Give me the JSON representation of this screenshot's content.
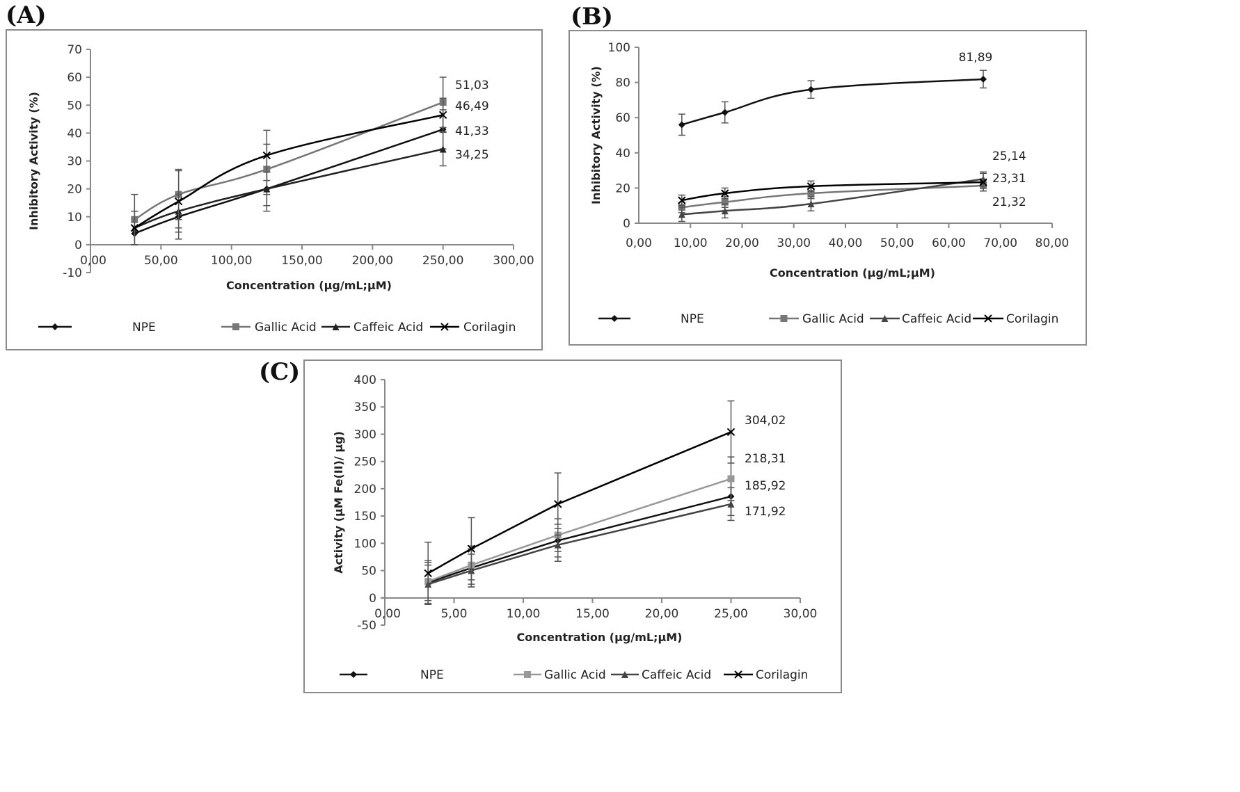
{
  "panels": [
    {
      "letter": "(A)"
    },
    {
      "letter": "(B)"
    },
    {
      "letter": "(C)"
    }
  ],
  "chart_data": [
    {
      "id": "A",
      "type": "line",
      "title": "",
      "xlabel": "Concentration (µg/mL;µM)",
      "ylabel": "Inhibitory Activity (%)",
      "xlim": [
        0,
        300
      ],
      "ylim": [
        -10,
        70
      ],
      "xticks": [
        0,
        50,
        100,
        150,
        200,
        250,
        300
      ],
      "xtick_labels": [
        "0,00",
        "50,00",
        "100,00",
        "150,00",
        "200,00",
        "250,00",
        "300,00"
      ],
      "yticks": [
        -10,
        0,
        10,
        20,
        30,
        40,
        50,
        60,
        70
      ],
      "ytick_labels": [
        "-10",
        "0",
        "10",
        "20",
        "30",
        "40",
        "50",
        "60",
        "70"
      ],
      "grid": false,
      "legend_position": "bottom",
      "x": [
        31.25,
        62.5,
        125,
        250
      ],
      "series": [
        {
          "name": "NPE",
          "marker": "diamond",
          "color": "#111111",
          "values": [
            4,
            10,
            20,
            41.33
          ],
          "errors": [
            4,
            8,
            8,
            7
          ]
        },
        {
          "name": "Gallic Acid",
          "marker": "square",
          "color": "#777777",
          "values": [
            9,
            18,
            27,
            51.03
          ],
          "errors": [
            9,
            9,
            9,
            9
          ]
        },
        {
          "name": "Caffeic Acid",
          "marker": "triangle",
          "color": "#222222",
          "values": [
            6,
            12,
            20,
            34.25
          ],
          "errors": [
            6,
            6,
            6,
            6
          ]
        },
        {
          "name": "Corilagin",
          "marker": "x",
          "color": "#000000",
          "values": [
            6,
            15.5,
            32,
            46.49
          ],
          "errors": [
            6,
            11,
            9,
            6
          ]
        }
      ],
      "end_labels": [
        "51,03",
        "46,49",
        "41,33",
        "34,25"
      ]
    },
    {
      "id": "B",
      "type": "line",
      "title": "",
      "xlabel": "Concentration (µg/mL;µM)",
      "ylabel": "Inhibitory Activity (%)",
      "xlim": [
        0,
        80
      ],
      "ylim": [
        0,
        100
      ],
      "xticks": [
        0,
        10,
        20,
        30,
        40,
        50,
        60,
        70,
        80
      ],
      "xtick_labels": [
        "0,00",
        "10,00",
        "20,00",
        "30,00",
        "40,00",
        "50,00",
        "60,00",
        "70,00",
        "80,00"
      ],
      "yticks": [
        0,
        20,
        40,
        60,
        80,
        100
      ],
      "ytick_labels": [
        "0",
        "20",
        "40",
        "60",
        "80",
        "100"
      ],
      "grid": false,
      "legend_position": "bottom",
      "x": [
        8.33,
        16.67,
        33.33,
        66.67
      ],
      "series": [
        {
          "name": "NPE",
          "marker": "diamond",
          "color": "#111111",
          "values": [
            56,
            63,
            76,
            81.89
          ],
          "errors": [
            6,
            6,
            5,
            5
          ]
        },
        {
          "name": "Gallic Acid",
          "marker": "square",
          "color": "#777777",
          "values": [
            9,
            12,
            17,
            21.32
          ],
          "errors": [
            3,
            3,
            3,
            3
          ]
        },
        {
          "name": "Caffeic Acid",
          "marker": "triangle",
          "color": "#444444",
          "values": [
            5,
            7,
            11,
            25.14
          ],
          "errors": [
            4,
            4,
            4,
            4
          ]
        },
        {
          "name": "Corilagin",
          "marker": "x",
          "color": "#000000",
          "values": [
            13,
            17,
            21,
            23.31
          ],
          "errors": [
            3,
            3,
            3,
            5
          ]
        }
      ],
      "end_labels": [
        "81,89",
        "25,14",
        "23,31",
        "21,32"
      ]
    },
    {
      "id": "C",
      "type": "line",
      "title": "",
      "xlabel": "Concentration (µg/mL;µM)",
      "ylabel": "Activity (µM Fe(II)/ µg)",
      "xlim": [
        0,
        30
      ],
      "ylim": [
        -50,
        400
      ],
      "xticks": [
        0,
        5,
        10,
        15,
        20,
        25,
        30
      ],
      "xtick_labels": [
        "0,00",
        "5,00",
        "10,00",
        "15,00",
        "20,00",
        "25,00",
        "30,00"
      ],
      "yticks": [
        -50,
        0,
        50,
        100,
        150,
        200,
        250,
        300,
        350,
        400
      ],
      "ytick_labels": [
        "-50",
        "0",
        "50",
        "100",
        "150",
        "200",
        "250",
        "300",
        "350",
        "400"
      ],
      "grid": false,
      "legend_position": "bottom",
      "x": [
        3.125,
        6.25,
        12.5,
        25
      ],
      "series": [
        {
          "name": "NPE",
          "marker": "diamond",
          "color": "#111111",
          "values": [
            28,
            55,
            105,
            185.92
          ],
          "errors": [
            40,
            35,
            30,
            35
          ]
        },
        {
          "name": "Gallic Acid",
          "marker": "square",
          "color": "#999999",
          "values": [
            30,
            60,
            115,
            218.31
          ],
          "errors": [
            35,
            35,
            30,
            40
          ]
        },
        {
          "name": "Caffeic Acid",
          "marker": "triangle",
          "color": "#444444",
          "values": [
            25,
            50,
            97,
            171.92
          ],
          "errors": [
            35,
            30,
            30,
            30
          ]
        },
        {
          "name": "Corilagin",
          "marker": "x",
          "color": "#000000",
          "values": [
            45,
            90,
            172,
            304.02
          ],
          "errors": [
            57,
            57,
            57,
            57
          ]
        }
      ],
      "end_labels": [
        "304,02",
        "218,31",
        "185,92",
        "171,92"
      ]
    }
  ]
}
